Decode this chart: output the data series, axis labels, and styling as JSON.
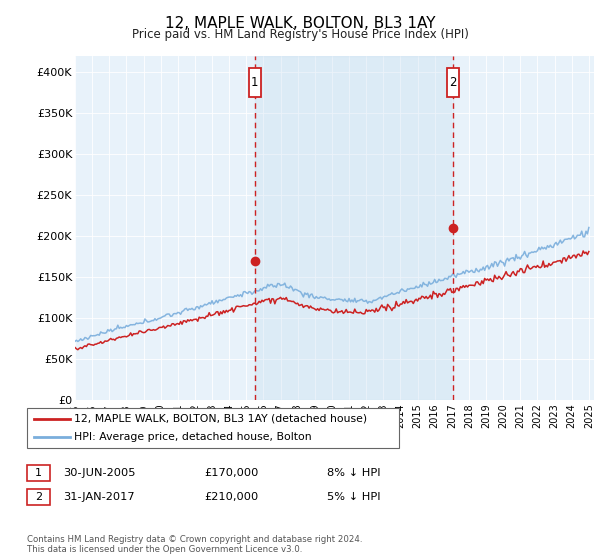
{
  "title": "12, MAPLE WALK, BOLTON, BL3 1AY",
  "subtitle": "Price paid vs. HM Land Registry's House Price Index (HPI)",
  "legend_line1": "12, MAPLE WALK, BOLTON, BL3 1AY (detached house)",
  "legend_line2": "HPI: Average price, detached house, Bolton",
  "transaction1_date": "30-JUN-2005",
  "transaction1_price": "£170,000",
  "transaction1_hpi": "8% ↓ HPI",
  "transaction2_date": "31-JAN-2017",
  "transaction2_price": "£210,000",
  "transaction2_hpi": "5% ↓ HPI",
  "copyright": "Contains HM Land Registry data © Crown copyright and database right 2024.\nThis data is licensed under the Open Government Licence v3.0.",
  "hpi_color": "#7aaedc",
  "price_color": "#cc2222",
  "vline_color": "#cc2222",
  "background_color": "#e8f2fa",
  "shade_color": "#c8dff0",
  "year_start": 1995,
  "year_end": 2025,
  "ylim_min": 0,
  "ylim_max": 420000,
  "t1_year": 2005.5,
  "t1_price": 170000,
  "t2_year": 2017.08,
  "t2_price": 210000
}
